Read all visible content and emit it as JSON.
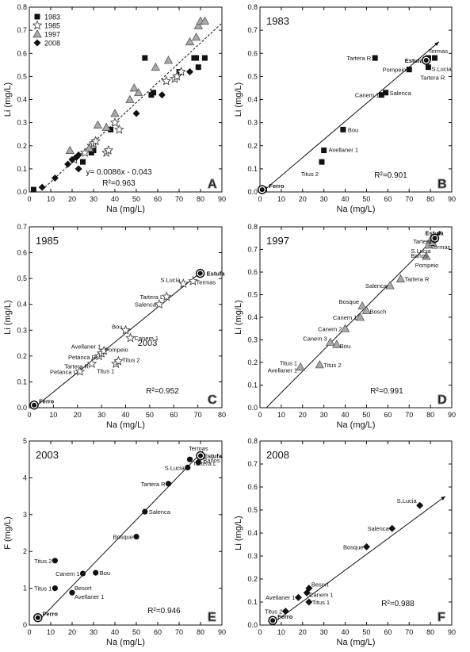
{
  "chart_data": [
    {
      "panel": "A",
      "type": "scatter",
      "xlabel": "Na (mg/L)",
      "ylabel": "Li (mg/L)",
      "xlim": [
        0,
        90
      ],
      "ylim": [
        0,
        0.8
      ],
      "xticks": [
        0,
        10,
        20,
        30,
        40,
        50,
        60,
        70,
        80,
        90
      ],
      "yticks": [
        0.0,
        0.1,
        0.2,
        0.3,
        0.4,
        0.5,
        0.6,
        0.7,
        0.8
      ],
      "ytick_decimals": 1,
      "legend_position": "top-left",
      "series": [
        {
          "name": "1983",
          "marker": "square",
          "points": [
            [
              2,
              0.01
            ],
            [
              25,
              0.13
            ],
            [
              29,
              0.17
            ],
            [
              30,
              0.18
            ],
            [
              38,
              0.27
            ],
            [
              54,
              0.58
            ],
            [
              57,
              0.42
            ],
            [
              58,
              0.43
            ],
            [
              70,
              0.52
            ],
            [
              77,
              0.58
            ],
            [
              78,
              0.58
            ],
            [
              79,
              0.54
            ],
            [
              82,
              0.58
            ]
          ]
        },
        {
          "name": "1985",
          "marker": "star",
          "points": [
            [
              21,
              0.14
            ],
            [
              26,
              0.17
            ],
            [
              29,
              0.2
            ],
            [
              30,
              0.21
            ],
            [
              31,
              0.22
            ],
            [
              36,
              0.17
            ],
            [
              37,
              0.18
            ],
            [
              40,
              0.3
            ],
            [
              42,
              0.27
            ],
            [
              64,
              0.48
            ],
            [
              68,
              0.49
            ],
            [
              69,
              0.5
            ],
            [
              71,
              0.52
            ]
          ]
        },
        {
          "name": "1997",
          "marker": "triangle",
          "points": [
            [
              19,
              0.18
            ],
            [
              28,
              0.19
            ],
            [
              32,
              0.29
            ],
            [
              36,
              0.28
            ],
            [
              40,
              0.34
            ],
            [
              47,
              0.4
            ],
            [
              49,
              0.45
            ],
            [
              51,
              0.43
            ],
            [
              59,
              0.54
            ],
            [
              65,
              0.57
            ],
            [
              75,
              0.65
            ],
            [
              78,
              0.67
            ],
            [
              79,
              0.72
            ],
            [
              80,
              0.74
            ],
            [
              82,
              0.74
            ]
          ]
        },
        {
          "name": "2008",
          "marker": "diamond",
          "points": [
            [
              6,
              0.02
            ],
            [
              12,
              0.06
            ],
            [
              18,
              0.12
            ],
            [
              20,
              0.14
            ],
            [
              22,
              0.15
            ],
            [
              23,
              0.16
            ],
            [
              23,
              0.1
            ],
            [
              50,
              0.34
            ],
            [
              62,
              0.42
            ],
            [
              75,
              0.52
            ]
          ]
        }
      ],
      "fit_line": {
        "x": [
          6,
          90
        ],
        "y": [
          0.0086,
          0.731
        ]
      },
      "annotations": [
        "y= 0.0086x - 0.043",
        "R²=0.963"
      ],
      "letter": "A"
    },
    {
      "panel": "B",
      "type": "scatter",
      "title": "1983",
      "xlabel": "Na (mg/L)",
      "ylabel": "Li (mg/L)",
      "xlim": [
        0,
        90
      ],
      "ylim": [
        0,
        0.8
      ],
      "xticks": [
        0,
        10,
        20,
        30,
        40,
        50,
        60,
        70,
        80,
        90
      ],
      "yticks": [
        0.0,
        0.1,
        0.2,
        0.3,
        0.4,
        0.5,
        0.6,
        0.7,
        0.8
      ],
      "ytick_decimals": 1,
      "series": [
        {
          "name": "",
          "marker": "square",
          "points": [
            [
              2,
              0.01
            ],
            [
              30,
              0.18
            ],
            [
              29,
              0.13
            ],
            [
              39,
              0.27
            ],
            [
              57,
              0.42
            ],
            [
              59,
              0.43
            ],
            [
              54,
              0.58
            ],
            [
              70,
              0.53
            ],
            [
              79,
              0.54
            ],
            [
              79,
              0.58
            ],
            [
              82,
              0.58
            ]
          ]
        }
      ],
      "endpoints": [
        [
          1,
          0.01
        ],
        [
          78,
          0.57
        ]
      ],
      "fit_line": {
        "x": [
          1,
          84
        ],
        "y": [
          0.0,
          0.65
        ]
      },
      "point_labels": [
        {
          "text": "Ferro",
          "x": 2,
          "y": 0.01,
          "bold": true
        },
        {
          "text": "Titus 2",
          "x": 29,
          "y": 0.13
        },
        {
          "text": "Avellaner 1",
          "x": 30,
          "y": 0.18
        },
        {
          "text": "Bou",
          "x": 39,
          "y": 0.27
        },
        {
          "text": "Canem 1",
          "x": 57,
          "y": 0.42
        },
        {
          "text": "Salenca",
          "x": 59,
          "y": 0.43
        },
        {
          "text": "Tartera R",
          "x": 54,
          "y": 0.58
        },
        {
          "text": "Pompeio",
          "x": 70,
          "y": 0.53
        },
        {
          "text": "Estufa",
          "x": 78,
          "y": 0.57,
          "bold": true
        },
        {
          "text": "Termas",
          "x": 82,
          "y": 0.58
        },
        {
          "text": "S.Lucia",
          "x": 79,
          "y": 0.54
        },
        {
          "text": "Tartera R",
          "x": 79,
          "y": 0.54
        }
      ],
      "annotations": [
        "R²=0.901"
      ],
      "letter": "B"
    },
    {
      "panel": "C",
      "type": "scatter",
      "title": "1985",
      "xlabel": "Na (mg/L)",
      "ylabel": "Li (mg/L)",
      "xlim": [
        0,
        80
      ],
      "ylim": [
        0,
        0.7
      ],
      "xticks": [
        0,
        10,
        20,
        30,
        40,
        50,
        60,
        70,
        80
      ],
      "yticks": [
        0.0,
        0.1,
        0.2,
        0.3,
        0.4,
        0.5,
        0.6,
        0.7
      ],
      "ytick_decimals": 1,
      "series": [
        {
          "name": "",
          "marker": "star",
          "points": [
            [
              21,
              0.14
            ],
            [
              26,
              0.17
            ],
            [
              29,
              0.2
            ],
            [
              30,
              0.21
            ],
            [
              31,
              0.22
            ],
            [
              36,
              0.17
            ],
            [
              37,
              0.18
            ],
            [
              40,
              0.3
            ],
            [
              42,
              0.27
            ],
            [
              54,
              0.4
            ],
            [
              57,
              0.43
            ],
            [
              64,
              0.48
            ],
            [
              68,
              0.49
            ]
          ]
        }
      ],
      "endpoints": [
        [
          2,
          0.01
        ],
        [
          71,
          0.52
        ]
      ],
      "fit_line": {
        "x": [
          2,
          72
        ],
        "y": [
          0.0,
          0.53
        ]
      },
      "point_labels": [
        {
          "text": "Ferro",
          "x": 2,
          "y": 0.01,
          "bold": true
        },
        {
          "text": "Estufa",
          "x": 71,
          "y": 0.52,
          "bold": true
        },
        {
          "text": "Termas",
          "x": 68,
          "y": 0.49
        },
        {
          "text": "S.Lucia",
          "x": 64,
          "y": 0.48
        },
        {
          "text": "Tartera L",
          "x": 57,
          "y": 0.43
        },
        {
          "text": "Salenca",
          "x": 54,
          "y": 0.4
        },
        {
          "text": "Bou",
          "x": 40,
          "y": 0.3
        },
        {
          "text": "Canem 1",
          "x": 42,
          "y": 0.27
        },
        {
          "text": "Avellaner 1",
          "x": 31,
          "y": 0.22
        },
        {
          "text": "Petanca R",
          "x": 29,
          "y": 0.2
        },
        {
          "text": "Pompeio",
          "x": 30,
          "y": 0.21
        },
        {
          "text": "Tartera R",
          "x": 26,
          "y": 0.17
        },
        {
          "text": "Titus 2",
          "x": 37,
          "y": 0.18
        },
        {
          "text": "Titus 1",
          "x": 36,
          "y": 0.17
        },
        {
          "text": "Petanca L",
          "x": 21,
          "y": 0.14
        }
      ],
      "annotations": [
        "2003",
        "R²=0.952"
      ],
      "letter": "C"
    },
    {
      "panel": "D",
      "type": "scatter",
      "title": "1997",
      "xlabel": "Na (mg/L)",
      "ylabel": "Li (mg/L)",
      "xlim": [
        0,
        90
      ],
      "ylim": [
        0,
        0.8
      ],
      "xticks": [
        0,
        10,
        20,
        30,
        40,
        50,
        60,
        70,
        80,
        90
      ],
      "yticks": [
        0.0,
        0.1,
        0.2,
        0.3,
        0.4,
        0.5,
        0.6,
        0.7,
        0.8
      ],
      "ytick_decimals": 1,
      "series": [
        {
          "name": "",
          "marker": "triangle",
          "points": [
            [
              19,
              0.18
            ],
            [
              28,
              0.19
            ],
            [
              33,
              0.29
            ],
            [
              36,
              0.28
            ],
            [
              40,
              0.35
            ],
            [
              47,
              0.4
            ],
            [
              48,
              0.45
            ],
            [
              50,
              0.43
            ],
            [
              61,
              0.54
            ],
            [
              66,
              0.57
            ],
            [
              78,
              0.67
            ],
            [
              80,
              0.74
            ],
            [
              79,
              0.72
            ],
            [
              81,
              0.73
            ]
          ]
        }
      ],
      "endpoints": [
        [
          82,
          0.75
        ]
      ],
      "fit_line": {
        "x": [
          3,
          85
        ],
        "y": [
          0.0,
          0.78
        ]
      },
      "point_labels": [
        {
          "text": "Estufa",
          "x": 82,
          "y": 0.75,
          "bold": true
        },
        {
          "text": "Tartera L",
          "x": 80,
          "y": 0.74
        },
        {
          "text": "S.Lucia",
          "x": 79,
          "y": 0.72
        },
        {
          "text": "Baños",
          "x": 79,
          "y": 0.72
        },
        {
          "text": "Termas",
          "x": 81,
          "y": 0.73
        },
        {
          "text": "Pompeio",
          "x": 78,
          "y": 0.67
        },
        {
          "text": "Tartera R",
          "x": 66,
          "y": 0.57
        },
        {
          "text": "Salenca",
          "x": 61,
          "y": 0.54
        },
        {
          "text": "Bosque",
          "x": 48,
          "y": 0.45
        },
        {
          "text": "Bosch",
          "x": 50,
          "y": 0.43
        },
        {
          "text": "Canem 1",
          "x": 47,
          "y": 0.4
        },
        {
          "text": "Canem 2",
          "x": 40,
          "y": 0.35
        },
        {
          "text": "Canem 3",
          "x": 33,
          "y": 0.29
        },
        {
          "text": "Bou",
          "x": 36,
          "y": 0.28
        },
        {
          "text": "Titus 1",
          "x": 19,
          "y": 0.18
        },
        {
          "text": "Avellaner 1",
          "x": 19,
          "y": 0.18
        },
        {
          "text": "Titus 2",
          "x": 28,
          "y": 0.19
        }
      ],
      "annotations": [
        "R²=0.991"
      ],
      "letter": "D"
    },
    {
      "panel": "E",
      "type": "scatter",
      "title": "2003",
      "xlabel": "Na (mg/L)",
      "ylabel": "F (mg/L)",
      "xlim": [
        0,
        90
      ],
      "ylim": [
        0,
        5
      ],
      "xticks": [
        0,
        10,
        20,
        30,
        40,
        50,
        60,
        70,
        80,
        90
      ],
      "yticks": [
        0,
        1,
        2,
        3,
        4,
        5
      ],
      "ytick_decimals": 0,
      "series": [
        {
          "name": "",
          "marker": "circle",
          "points": [
            [
              12,
              1.0
            ],
            [
              12,
              1.75
            ],
            [
              25,
              1.4
            ],
            [
              31,
              1.42
            ],
            [
              20,
              0.88
            ],
            [
              50,
              2.4
            ],
            [
              54,
              3.08
            ],
            [
              65,
              3.84
            ],
            [
              74,
              4.28
            ],
            [
              75,
              4.5
            ],
            [
              79,
              4.42
            ],
            [
              80,
              4.55
            ]
          ]
        }
      ],
      "endpoints": [
        [
          4,
          0.2
        ],
        [
          80,
          4.6
        ]
      ],
      "fit_line": {
        "x": [
          4,
          81
        ],
        "y": [
          0.1,
          4.72
        ]
      },
      "point_labels": [
        {
          "text": "Ferro",
          "x": 4,
          "y": 0.2,
          "bold": true
        },
        {
          "text": "Titus 1",
          "x": 12,
          "y": 1.0
        },
        {
          "text": "Besort",
          "x": 20,
          "y": 0.88
        },
        {
          "text": "Avellaner 1",
          "x": 20,
          "y": 0.88
        },
        {
          "text": "Titus 2",
          "x": 12,
          "y": 1.75
        },
        {
          "text": "Canem 1",
          "x": 25,
          "y": 1.4
        },
        {
          "text": "Bou",
          "x": 31,
          "y": 1.42
        },
        {
          "text": "Bosque",
          "x": 50,
          "y": 2.4
        },
        {
          "text": "Salenca",
          "x": 54,
          "y": 3.08
        },
        {
          "text": "Tartera R",
          "x": 65,
          "y": 3.84
        },
        {
          "text": "S.Lucia",
          "x": 74,
          "y": 4.28
        },
        {
          "text": "Tartera L",
          "x": 75,
          "y": 4.5
        },
        {
          "text": "Baños",
          "x": 79,
          "y": 4.42
        },
        {
          "text": "Termas",
          "x": 80,
          "y": 4.55
        },
        {
          "text": "Estufa",
          "x": 80,
          "y": 4.6,
          "bold": true
        }
      ],
      "annotations": [
        "R²=0.946"
      ],
      "letter": "E"
    },
    {
      "panel": "F",
      "type": "scatter",
      "title": "2008",
      "xlabel": "Na (mg/L)",
      "ylabel": "Li (mg/L)",
      "xlim": [
        0,
        90
      ],
      "ylim": [
        0,
        0.8
      ],
      "xticks": [
        0,
        10,
        20,
        30,
        40,
        50,
        60,
        70,
        80,
        90
      ],
      "yticks": [
        0.0,
        0.1,
        0.2,
        0.3,
        0.4,
        0.5,
        0.6,
        0.7,
        0.8
      ],
      "ytick_decimals": 1,
      "series": [
        {
          "name": "",
          "marker": "diamond",
          "points": [
            [
              12,
              0.06
            ],
            [
              18,
              0.12
            ],
            [
              22,
              0.14
            ],
            [
              23,
              0.16
            ],
            [
              23,
              0.1
            ],
            [
              50,
              0.34
            ],
            [
              62,
              0.42
            ],
            [
              75,
              0.52
            ]
          ]
        }
      ],
      "endpoints": [
        [
          6,
          0.02
        ]
      ],
      "fit_line": {
        "x": [
          5,
          87
        ],
        "y": [
          0.0,
          0.56
        ]
      },
      "point_labels": [
        {
          "text": "Ferro",
          "x": 6,
          "y": 0.02,
          "bold": true
        },
        {
          "text": "Titus 2",
          "x": 12,
          "y": 0.06
        },
        {
          "text": "Avellaner 1",
          "x": 18,
          "y": 0.12
        },
        {
          "text": "Besort",
          "x": 23,
          "y": 0.16
        },
        {
          "text": "Canem 1",
          "x": 22,
          "y": 0.14
        },
        {
          "text": "Titus 1",
          "x": 23,
          "y": 0.1
        },
        {
          "text": "Bosque",
          "x": 50,
          "y": 0.34
        },
        {
          "text": "Salenca",
          "x": 62,
          "y": 0.42
        },
        {
          "text": "S.Lucia",
          "x": 75,
          "y": 0.52
        }
      ],
      "annotations": [
        "R²=0.988"
      ],
      "letter": "F"
    }
  ]
}
